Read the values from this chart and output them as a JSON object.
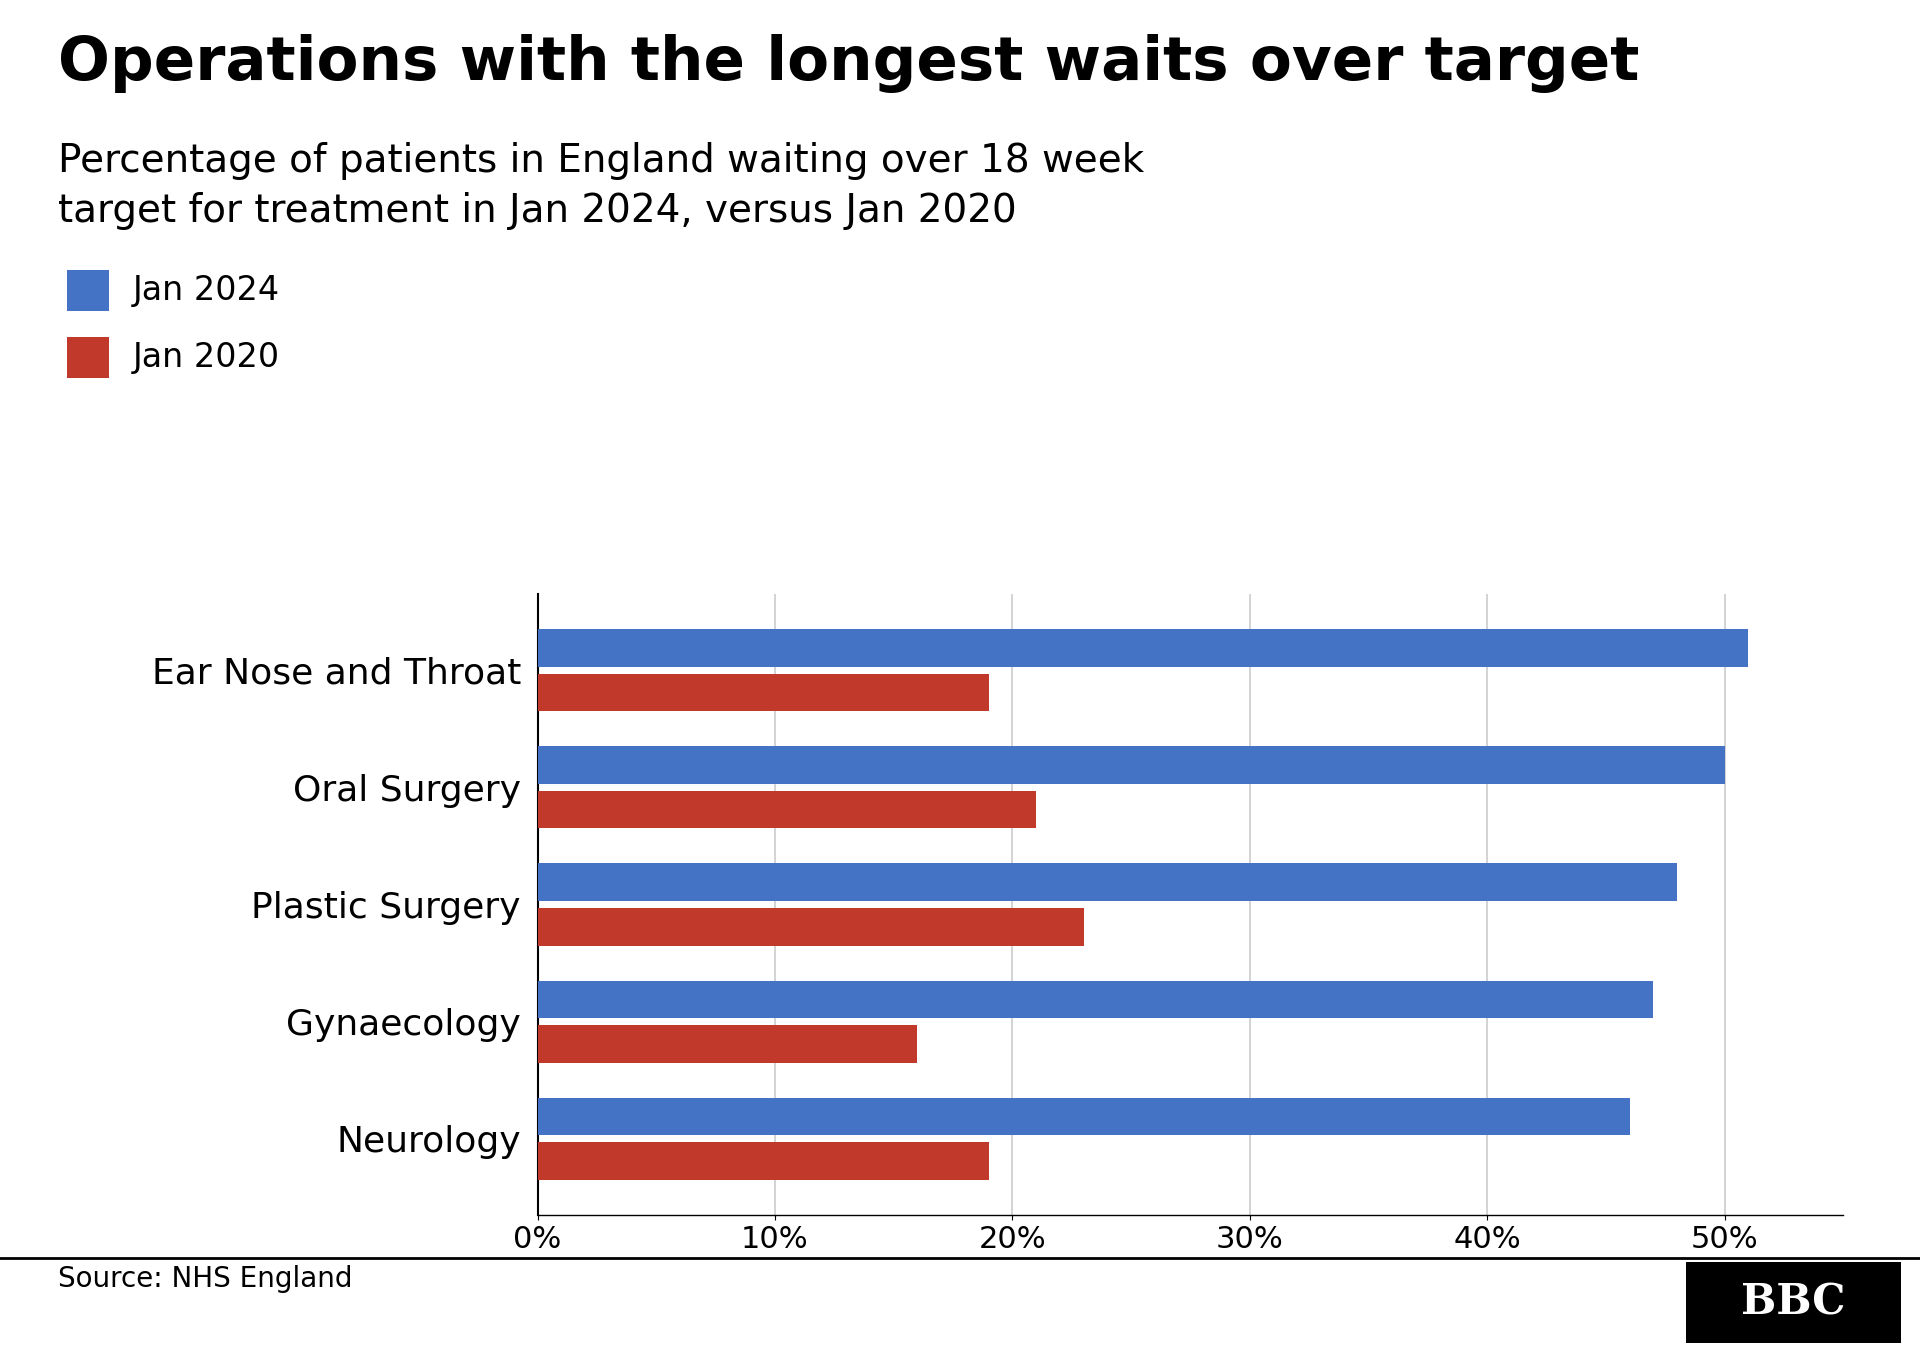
{
  "title": "Operations with the longest waits over target",
  "subtitle": "Percentage of patients in England waiting over 18 week\ntarget for treatment in Jan 2024, versus Jan 2020",
  "categories": [
    "Ear Nose and Throat",
    "Oral Surgery",
    "Plastic Surgery",
    "Gynaecology",
    "Neurology"
  ],
  "jan2024": [
    51,
    50,
    48,
    47,
    46
  ],
  "jan2020": [
    19,
    21,
    23,
    16,
    19
  ],
  "color_2024": "#4472C4",
  "color_2020": "#C0392B",
  "legend_2024": "Jan 2024",
  "legend_2020": "Jan 2020",
  "xlim": [
    0,
    55
  ],
  "xticks": [
    0,
    10,
    20,
    30,
    40,
    50
  ],
  "source": "Source: NHS England",
  "background_color": "#FFFFFF",
  "title_fontsize": 44,
  "subtitle_fontsize": 28,
  "tick_fontsize": 22,
  "label_fontsize": 26,
  "legend_fontsize": 24,
  "source_fontsize": 20
}
